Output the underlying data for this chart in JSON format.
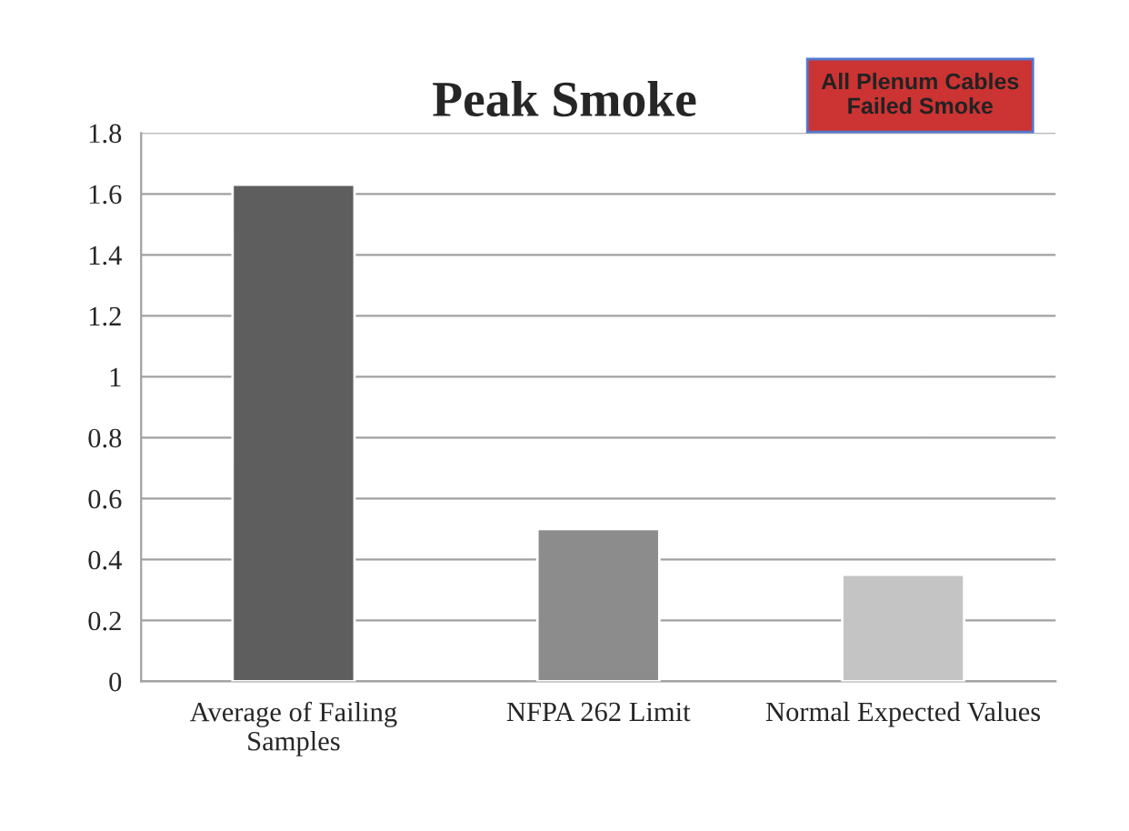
{
  "chart_data": {
    "type": "bar",
    "title": "Peak Smoke",
    "categories": [
      "Average of Failing\nSamples",
      "NFPA 262 Limit",
      "Normal Expected Values"
    ],
    "values": [
      1.63,
      0.5,
      0.35
    ],
    "colors": [
      "#5e5e5e",
      "#8c8c8c",
      "#c4c4c4"
    ],
    "ylim": [
      0,
      1.8
    ],
    "yticks": [
      0,
      0.2,
      0.4,
      0.6,
      0.8,
      1,
      1.2,
      1.4,
      1.6,
      1.8
    ],
    "grid": "y",
    "annotations": [
      "All Plenum Cables\nFailed Smoke"
    ]
  }
}
